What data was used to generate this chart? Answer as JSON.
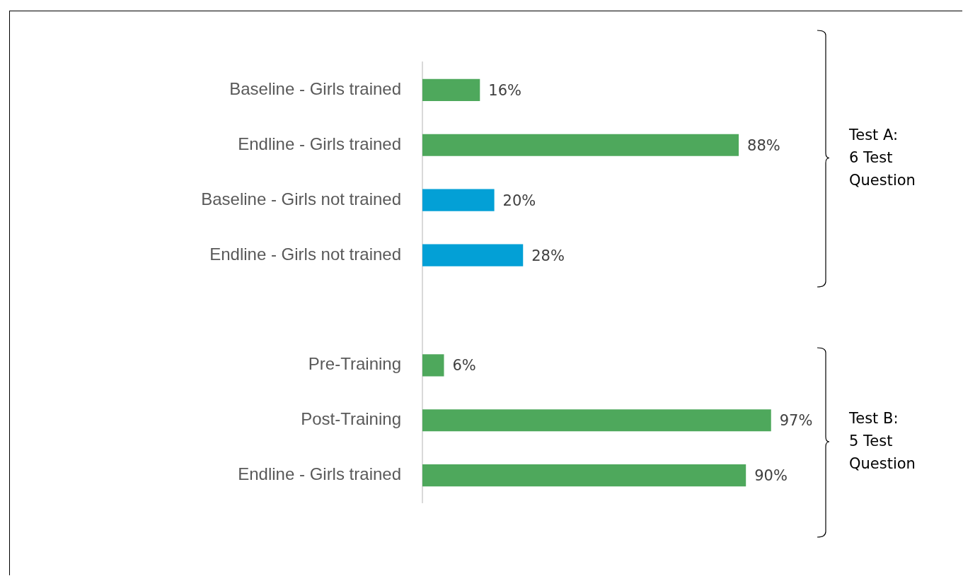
{
  "chart_data": {
    "type": "bar",
    "orientation": "horizontal",
    "categories": [
      "Baseline - Girls trained",
      "Endline - Girls trained",
      "Baseline - Girls not trained",
      "Endline - Girls not trained",
      null,
      "Pre-Training",
      "Post-Training",
      "Endline - Girls trained"
    ],
    "values": [
      16,
      88,
      20,
      28,
      null,
      6,
      97,
      90
    ],
    "colors": [
      "#4ea85c",
      "#4ea85c",
      "#03a0d6",
      "#03a0d6",
      null,
      "#4ea85c",
      "#4ea85c",
      "#4ea85c"
    ],
    "value_labels": [
      "16%",
      "88%",
      "20%",
      "28%",
      null,
      "6%",
      "97%",
      "90%"
    ],
    "tick_labels": "y",
    "legend": false,
    "annotations": [
      "Test A: 6 Test Question",
      "Test B: 5 Test Question"
    ]
  }
}
